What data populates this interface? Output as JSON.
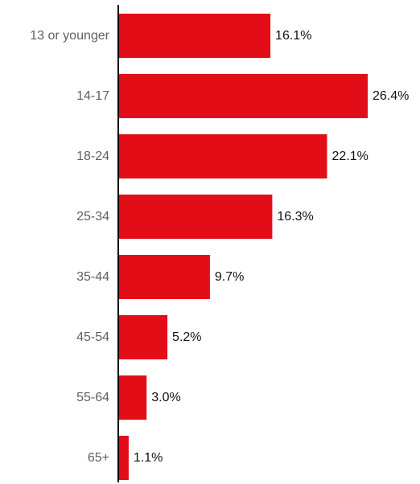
{
  "chart_data": {
    "type": "bar",
    "orientation": "horizontal",
    "categories": [
      "13 or younger",
      "14-17",
      "18-24",
      "25-34",
      "35-44",
      "45-54",
      "55-64",
      "65+"
    ],
    "values": [
      16.1,
      26.4,
      22.1,
      16.3,
      9.7,
      5.2,
      3.0,
      1.1
    ],
    "value_labels": [
      "16.1%",
      "26.4%",
      "22.1%",
      "16.3%",
      "9.7%",
      "5.2%",
      "3.0%",
      "1.1%"
    ],
    "bar_color": "#e30d18",
    "axis_color": "#000000",
    "xlim": [
      0,
      26.4
    ],
    "grid": false,
    "legend": "none"
  }
}
